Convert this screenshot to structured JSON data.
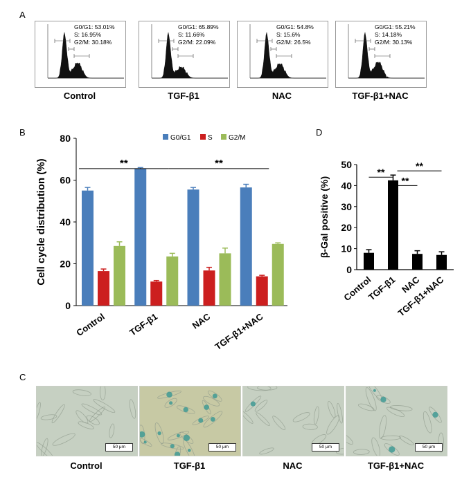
{
  "panel_letters": {
    "a": "A",
    "b": "B",
    "c": "C",
    "d": "D"
  },
  "flow_panels": [
    {
      "label": "Control",
      "g0g1": "G0/G1: 53.01%",
      "s": "S: 16.95%",
      "g2m": "G2/M: 30.18%",
      "peaks": [
        1.0,
        0.32
      ]
    },
    {
      "label": "TGF-β1",
      "g0g1": "G0/G1: 65.89%",
      "s": "S: 11.66%",
      "g2m": "G2/M: 22.09%",
      "peaks": [
        1.0,
        0.22
      ]
    },
    {
      "label": "NAC",
      "g0g1": "G0/G1: 54.8%",
      "s": "S: 15.6%",
      "g2m": "G2/M: 26.5%",
      "peaks": [
        1.0,
        0.3
      ]
    },
    {
      "label": "TGF-β1+NAC",
      "g0g1": "G0/G1: 55.21%",
      "s": "S: 14.18%",
      "g2m": "G2/M: 30.13%",
      "peaks": [
        1.0,
        0.34
      ]
    }
  ],
  "chart_data": [
    {
      "type": "bar",
      "panel": "B",
      "ylabel": "Cell cycle distribution (%)",
      "xlabel": "",
      "ylim": [
        0,
        80
      ],
      "yticks": [
        0,
        20,
        40,
        60,
        80
      ],
      "categories": [
        "Control",
        "TGF-β1",
        "NAC",
        "TGF-β1+NAC"
      ],
      "series": [
        {
          "name": "G0/G1",
          "color": "#4a7ebb",
          "values": [
            55,
            65.5,
            55.5,
            56.5
          ],
          "errors": [
            1.5,
            0.5,
            1.0,
            1.5
          ]
        },
        {
          "name": "S",
          "color": "#cc1f1f",
          "values": [
            16.5,
            11.5,
            16.8,
            14
          ],
          "errors": [
            1.0,
            0.5,
            1.5,
            0.5
          ]
        },
        {
          "name": "G2/M",
          "color": "#9bbb59",
          "values": [
            28.5,
            23.5,
            25,
            29.5
          ],
          "errors": [
            2.0,
            1.5,
            2.5,
            0.5
          ]
        }
      ],
      "legend_position": "top",
      "significance": [
        {
          "from": 0,
          "to": 1,
          "label": "**",
          "y": 65.5
        },
        {
          "from": 1,
          "to": 3,
          "label": "**",
          "y": 65.5
        }
      ]
    },
    {
      "type": "bar",
      "panel": "D",
      "ylabel": "β-Gal positive (%)",
      "xlabel": "",
      "ylim": [
        0,
        50
      ],
      "yticks": [
        0,
        10,
        20,
        30,
        40,
        50
      ],
      "categories": [
        "Control",
        "TGF-β1",
        "NAC",
        "TGF-β1+NAC"
      ],
      "series": [
        {
          "color": "#000000",
          "values": [
            8,
            42.5,
            7.5,
            7
          ],
          "errors": [
            1.5,
            2.5,
            1.5,
            1.5
          ]
        }
      ],
      "significance": [
        {
          "from": 0,
          "to": 1,
          "label": "**",
          "y": 44
        },
        {
          "from": 1,
          "to": 2,
          "label": "**",
          "y": 40
        },
        {
          "from": 1,
          "to": 3,
          "label": "**",
          "y": 47
        }
      ]
    }
  ],
  "micrographs": [
    {
      "label": "Control",
      "scale": "50 μm",
      "stain": 0.05
    },
    {
      "label": "TGF-β1",
      "scale": "50 μm",
      "stain": 0.9
    },
    {
      "label": "NAC",
      "scale": "50 μm",
      "stain": 0.1
    },
    {
      "label": "TGF-β1+NAC",
      "scale": "50 μm",
      "stain": 0.25
    }
  ]
}
